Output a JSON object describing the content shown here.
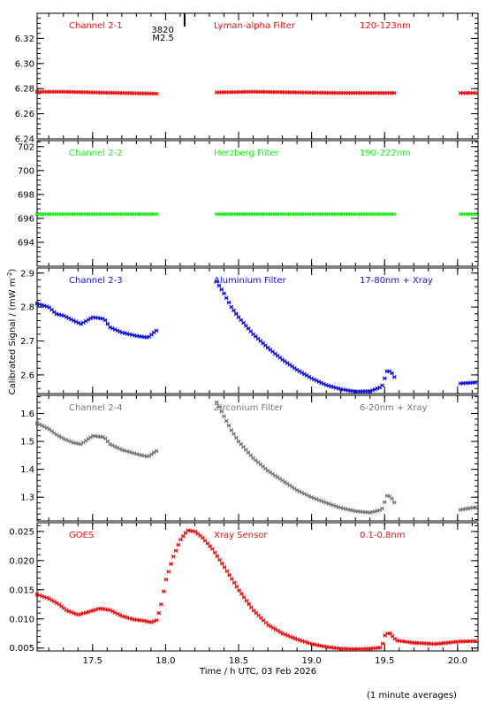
{
  "figure": {
    "xlabel": "Time / h UTC, 03 Feb 2026",
    "ylabel": "Calibrated Signal / (mW m",
    "ylabel_sup": "-2",
    "ylabel_close": ")",
    "footer": "(1 minute averages)",
    "event_marker": {
      "label_line1": "3820",
      "label_line2": "M2.5",
      "time": 18.13
    }
  },
  "chart_data": [
    {
      "type": "scatter",
      "name": "Channel 2-1",
      "texts": [
        "Channel 2-1",
        "Lyman-alpha Filter",
        "120-123nm"
      ],
      "color": "#ee1111",
      "ylim": [
        6.24,
        6.34
      ],
      "yticks": [
        6.24,
        6.26,
        6.28,
        6.3,
        6.32
      ],
      "ytick_labels": [
        "6.24",
        "6.26",
        "6.28",
        "6.30",
        "6.32"
      ],
      "segments": [
        {
          "x": [
            17.12,
            17.3,
            17.5,
            17.7,
            17.95
          ],
          "y": [
            6.2775,
            6.2775,
            6.277,
            6.2765,
            6.276
          ]
        },
        {
          "x": [
            18.35,
            18.6,
            18.9,
            19.2,
            19.58
          ],
          "y": [
            6.277,
            6.2775,
            6.277,
            6.2765,
            6.2765
          ]
        },
        {
          "x": [
            20.02,
            20.13
          ],
          "y": [
            6.2765,
            6.2765
          ]
        }
      ]
    },
    {
      "type": "scatter",
      "name": "Channel 2-2",
      "texts": [
        "Channel 2-2",
        "Herzberg Filter",
        "190-222nm"
      ],
      "color": "#22ee22",
      "ylim": [
        692.0,
        702.5
      ],
      "yticks": [
        694,
        696,
        698,
        700,
        702
      ],
      "ytick_labels": [
        "694",
        "696",
        "698",
        "700",
        "702"
      ],
      "segments": [
        {
          "x": [
            17.12,
            17.95
          ],
          "y": [
            696.35,
            696.35
          ]
        },
        {
          "x": [
            18.35,
            19.58
          ],
          "y": [
            696.35,
            696.35
          ]
        },
        {
          "x": [
            20.02,
            20.13
          ],
          "y": [
            696.35,
            696.35
          ]
        }
      ]
    },
    {
      "type": "scatter",
      "name": "Channel 2-3",
      "texts": [
        "Channel 2-3",
        "Aluminium Filter",
        "17-80nm + Xray"
      ],
      "color": "#1111dd",
      "ylim": [
        2.545,
        2.915
      ],
      "yticks": [
        2.6,
        2.7,
        2.8,
        2.9
      ],
      "ytick_labels": [
        "2.6",
        "2.7",
        "2.8",
        "2.9"
      ],
      "segments": [
        {
          "x": [
            17.12,
            17.2,
            17.25,
            17.3,
            17.37,
            17.42,
            17.5,
            17.58,
            17.62,
            17.7,
            17.8,
            17.88,
            17.92,
            17.95
          ],
          "y": [
            2.81,
            2.8,
            2.78,
            2.775,
            2.76,
            2.75,
            2.77,
            2.765,
            2.74,
            2.725,
            2.715,
            2.71,
            2.725,
            2.735
          ]
        },
        {
          "x": [
            18.35,
            18.4,
            18.45,
            18.5,
            18.6,
            18.7,
            18.8,
            18.9,
            19.0,
            19.1,
            19.2,
            19.3,
            19.4,
            19.48,
            19.52,
            19.55,
            19.58
          ],
          "y": [
            2.875,
            2.84,
            2.8,
            2.77,
            2.72,
            2.68,
            2.645,
            2.615,
            2.59,
            2.57,
            2.558,
            2.551,
            2.552,
            2.565,
            2.615,
            2.605,
            2.585
          ]
        },
        {
          "x": [
            20.02,
            20.13
          ],
          "y": [
            2.575,
            2.578
          ]
        }
      ]
    },
    {
      "type": "scatter",
      "name": "Channel 2-4",
      "texts": [
        "Channel 2-4",
        "Zirconium Filter",
        "6-20nm + Xray"
      ],
      "color": "#777777",
      "ylim": [
        1.215,
        1.665
      ],
      "yticks": [
        1.3,
        1.4,
        1.5,
        1.6
      ],
      "ytick_labels": [
        "1.3",
        "1.4",
        "1.5",
        "1.6"
      ],
      "segments": [
        {
          "x": [
            17.12,
            17.2,
            17.25,
            17.3,
            17.37,
            17.42,
            17.5,
            17.58,
            17.62,
            17.7,
            17.8,
            17.88,
            17.92,
            17.95
          ],
          "y": [
            1.565,
            1.545,
            1.525,
            1.51,
            1.495,
            1.49,
            1.52,
            1.515,
            1.49,
            1.47,
            1.455,
            1.445,
            1.46,
            1.47
          ]
        },
        {
          "x": [
            18.35,
            18.4,
            18.45,
            18.5,
            18.6,
            18.7,
            18.8,
            18.9,
            19.0,
            19.1,
            19.2,
            19.3,
            19.4,
            19.48,
            19.52,
            19.55,
            19.58
          ],
          "y": [
            1.64,
            1.59,
            1.54,
            1.5,
            1.44,
            1.395,
            1.36,
            1.325,
            1.3,
            1.28,
            1.262,
            1.25,
            1.245,
            1.255,
            1.31,
            1.295,
            1.27
          ]
        },
        {
          "x": [
            20.02,
            20.13
          ],
          "y": [
            1.255,
            1.265
          ]
        }
      ]
    },
    {
      "type": "scatter",
      "name": "GOES",
      "texts": [
        "GOES",
        "Xray Sensor",
        "0.1-0.8nm"
      ],
      "color": "#ee1111",
      "ylim": [
        0.0045,
        0.0265
      ],
      "yticks": [
        0.005,
        0.01,
        0.015,
        0.02,
        0.025
      ],
      "ytick_labels": [
        "0.005",
        "0.010",
        "0.015",
        "0.020",
        "0.025"
      ],
      "segments": [
        {
          "x": [
            17.12,
            17.2,
            17.27,
            17.32,
            17.4,
            17.47,
            17.55,
            17.62,
            17.7,
            17.78,
            17.85,
            17.9,
            17.94,
            17.97,
            18.0,
            18.05,
            18.1,
            18.15,
            18.2,
            18.25,
            18.32,
            18.4,
            18.5,
            18.6,
            18.7,
            18.8,
            18.9,
            19.0,
            19.1,
            19.2,
            19.3,
            19.4,
            19.48,
            19.5,
            19.53,
            19.58,
            19.7,
            19.85,
            20.0,
            20.13
          ],
          "y": [
            0.0142,
            0.0135,
            0.0125,
            0.0115,
            0.0107,
            0.0112,
            0.0118,
            0.0115,
            0.0105,
            0.0099,
            0.0097,
            0.0094,
            0.0098,
            0.0125,
            0.0165,
            0.0205,
            0.0235,
            0.0252,
            0.025,
            0.024,
            0.022,
            0.019,
            0.015,
            0.0115,
            0.009,
            0.0075,
            0.0065,
            0.0057,
            0.0052,
            0.0049,
            0.0048,
            0.0049,
            0.0051,
            0.0071,
            0.0077,
            0.0063,
            0.0059,
            0.0057,
            0.0061,
            0.0062
          ]
        }
      ]
    }
  ],
  "x_axis": {
    "xlim": [
      17.12,
      20.14
    ],
    "ticks": [
      17.5,
      18.0,
      18.5,
      19.0,
      19.5,
      20.0
    ],
    "tick_labels": [
      "17.5",
      "18.0",
      "18.5",
      "19.0",
      "19.5",
      "20.0"
    ],
    "minor_step": 0.1
  }
}
